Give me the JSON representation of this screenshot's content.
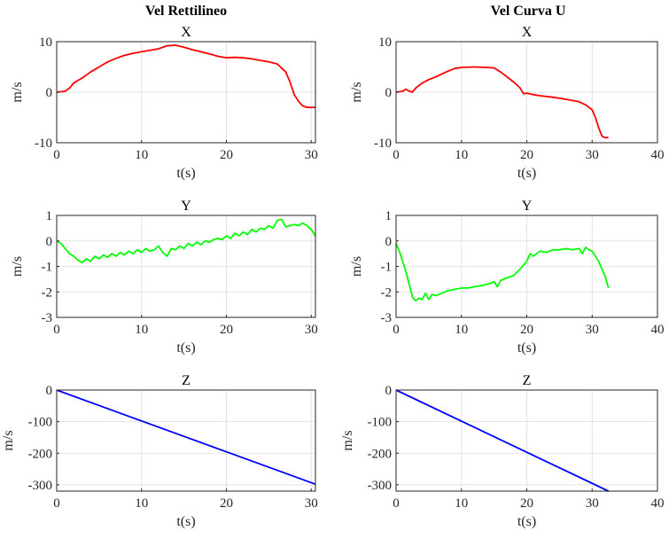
{
  "column_titles": [
    "Vel Rettilineo",
    "Vel Curva U"
  ],
  "chart_data": [
    {
      "type": "line",
      "title": "X",
      "xlabel": "t(s)",
      "ylabel": "m/s",
      "xlim": [
        0,
        30.5
      ],
      "ylim": [
        -10,
        10
      ],
      "xticks": [
        0,
        10,
        20,
        30
      ],
      "yticks": [
        -10,
        0,
        10
      ],
      "grid": true,
      "series": [
        {
          "color": "#ff0000",
          "x": [
            0,
            1,
            1.5,
            2,
            2.5,
            3,
            4,
            5,
            6,
            7,
            8,
            9,
            10,
            11,
            12,
            13,
            14,
            15,
            16,
            17,
            18,
            19,
            20,
            21,
            22,
            23,
            24,
            25,
            26,
            27,
            27.5,
            28,
            28.5,
            29,
            29.5,
            30,
            30.5
          ],
          "y": [
            0,
            0.2,
            0.8,
            1.8,
            2.3,
            2.8,
            4,
            5,
            6,
            6.7,
            7.3,
            7.7,
            8,
            8.3,
            8.6,
            9.2,
            9.3,
            8.9,
            8.4,
            8,
            7.6,
            7.1,
            6.8,
            6.9,
            6.8,
            6.6,
            6.3,
            6,
            5.6,
            4,
            2,
            -0.5,
            -1.8,
            -2.7,
            -3,
            -3,
            -3
          ]
        }
      ]
    },
    {
      "type": "line",
      "title": "X",
      "xlabel": "t(s)",
      "ylabel": "m/s",
      "xlim": [
        0,
        40
      ],
      "ylim": [
        -10,
        10
      ],
      "xticks": [
        0,
        10,
        20,
        30,
        40
      ],
      "yticks": [
        -10,
        0,
        10
      ],
      "grid": true,
      "series": [
        {
          "color": "#ff0000",
          "x": [
            0,
            1,
            1.5,
            2,
            2.5,
            3,
            4,
            5,
            6,
            7,
            8,
            9,
            10,
            12,
            14,
            15,
            16,
            17,
            18,
            19,
            19.5,
            20,
            21,
            22,
            24,
            26,
            28,
            29,
            30,
            30.5,
            31,
            31.5,
            32,
            32.5
          ],
          "y": [
            0,
            0.2,
            0.6,
            0.2,
            0,
            0.8,
            1.8,
            2.5,
            3,
            3.6,
            4.2,
            4.7,
            4.9,
            5,
            4.9,
            4.8,
            4,
            3,
            2,
            0.8,
            -0.3,
            -0.2,
            -0.5,
            -0.7,
            -1,
            -1.4,
            -1.9,
            -2.5,
            -3.5,
            -5,
            -7,
            -8.7,
            -9,
            -9
          ]
        }
      ]
    },
    {
      "type": "line",
      "title": "Y",
      "xlabel": "t(s)",
      "ylabel": "m/s",
      "xlim": [
        0,
        30.5
      ],
      "ylim": [
        -3,
        1
      ],
      "xticks": [
        0,
        10,
        20,
        30
      ],
      "yticks": [
        -3,
        -2,
        -1,
        0,
        1
      ],
      "grid": true,
      "series": [
        {
          "color": "#00ff00",
          "x": [
            0,
            0.5,
            1,
            1.5,
            2,
            2.5,
            3,
            3.5,
            4,
            4.5,
            5,
            5.5,
            6,
            6.5,
            7,
            7.5,
            8,
            8.5,
            9,
            9.5,
            10,
            10.5,
            11,
            11.5,
            12,
            12.5,
            13,
            13.5,
            14,
            14.5,
            15,
            15.5,
            16,
            16.5,
            17,
            17.5,
            18,
            18.5,
            19,
            19.5,
            20,
            20.5,
            21,
            21.5,
            22,
            22.5,
            23,
            23.5,
            24,
            24.5,
            25,
            25.5,
            26,
            26.5,
            27,
            27.5,
            28,
            28.5,
            29,
            29.5,
            30,
            30.5
          ],
          "y": [
            0,
            -0.1,
            -0.3,
            -0.5,
            -0.6,
            -0.75,
            -0.85,
            -0.7,
            -0.8,
            -0.6,
            -0.7,
            -0.55,
            -0.65,
            -0.5,
            -0.6,
            -0.45,
            -0.55,
            -0.4,
            -0.5,
            -0.35,
            -0.45,
            -0.3,
            -0.4,
            -0.35,
            -0.2,
            -0.45,
            -0.6,
            -0.3,
            -0.35,
            -0.2,
            -0.3,
            -0.1,
            -0.2,
            -0.05,
            -0.15,
            0,
            -0.05,
            0.05,
            0.1,
            0.05,
            0.2,
            0.1,
            0.3,
            0.2,
            0.35,
            0.25,
            0.45,
            0.35,
            0.5,
            0.45,
            0.6,
            0.5,
            0.8,
            0.85,
            0.55,
            0.6,
            0.65,
            0.6,
            0.7,
            0.6,
            0.45,
            0.2
          ]
        }
      ]
    },
    {
      "type": "line",
      "title": "Y",
      "xlabel": "t(s)",
      "ylabel": "m/s",
      "xlim": [
        0,
        40
      ],
      "ylim": [
        -3,
        1
      ],
      "xticks": [
        0,
        10,
        20,
        30,
        40
      ],
      "yticks": [
        -3,
        -2,
        -1,
        0,
        1
      ],
      "grid": true,
      "series": [
        {
          "color": "#00ff00",
          "x": [
            0,
            0.5,
            1,
            1.5,
            2,
            2.5,
            3,
            3.5,
            4,
            4.5,
            5,
            5.5,
            6,
            7,
            8,
            9,
            10,
            11,
            12,
            13,
            14,
            15,
            15.5,
            16,
            17,
            18,
            19,
            20,
            20.5,
            21,
            22,
            23,
            24,
            25,
            26,
            27,
            28,
            28.5,
            29,
            29.5,
            30,
            31,
            32,
            32.5
          ],
          "y": [
            -0.1,
            -0.4,
            -0.8,
            -1.2,
            -1.7,
            -2.2,
            -2.35,
            -2.25,
            -2.3,
            -2.05,
            -2.3,
            -2.1,
            -2.15,
            -2.05,
            -1.95,
            -1.9,
            -1.85,
            -1.85,
            -1.8,
            -1.75,
            -1.7,
            -1.6,
            -1.8,
            -1.55,
            -1.45,
            -1.35,
            -1.1,
            -0.8,
            -0.5,
            -0.6,
            -0.4,
            -0.45,
            -0.35,
            -0.35,
            -0.3,
            -0.35,
            -0.3,
            -0.5,
            -0.25,
            -0.35,
            -0.4,
            -0.8,
            -1.4,
            -1.85
          ]
        }
      ]
    },
    {
      "type": "line",
      "title": "Z",
      "xlabel": "t(s)",
      "ylabel": "m/s",
      "xlim": [
        0,
        30.5
      ],
      "ylim": [
        -320,
        0
      ],
      "xticks": [
        0,
        10,
        20,
        30
      ],
      "yticks": [
        -300,
        -200,
        -100,
        0
      ],
      "grid": true,
      "series": [
        {
          "color": "#0000ff",
          "x": [
            0,
            30.5
          ],
          "y": [
            0,
            -298
          ]
        }
      ]
    },
    {
      "type": "line",
      "title": "Z",
      "xlabel": "t(s)",
      "ylabel": "m/s",
      "xlim": [
        0,
        40
      ],
      "ylim": [
        -320,
        0
      ],
      "xticks": [
        0,
        10,
        20,
        30,
        40
      ],
      "yticks": [
        -300,
        -200,
        -100,
        0
      ],
      "grid": true,
      "series": [
        {
          "color": "#0000ff",
          "x": [
            0,
            32.5
          ],
          "y": [
            0,
            -320
          ]
        }
      ]
    }
  ]
}
